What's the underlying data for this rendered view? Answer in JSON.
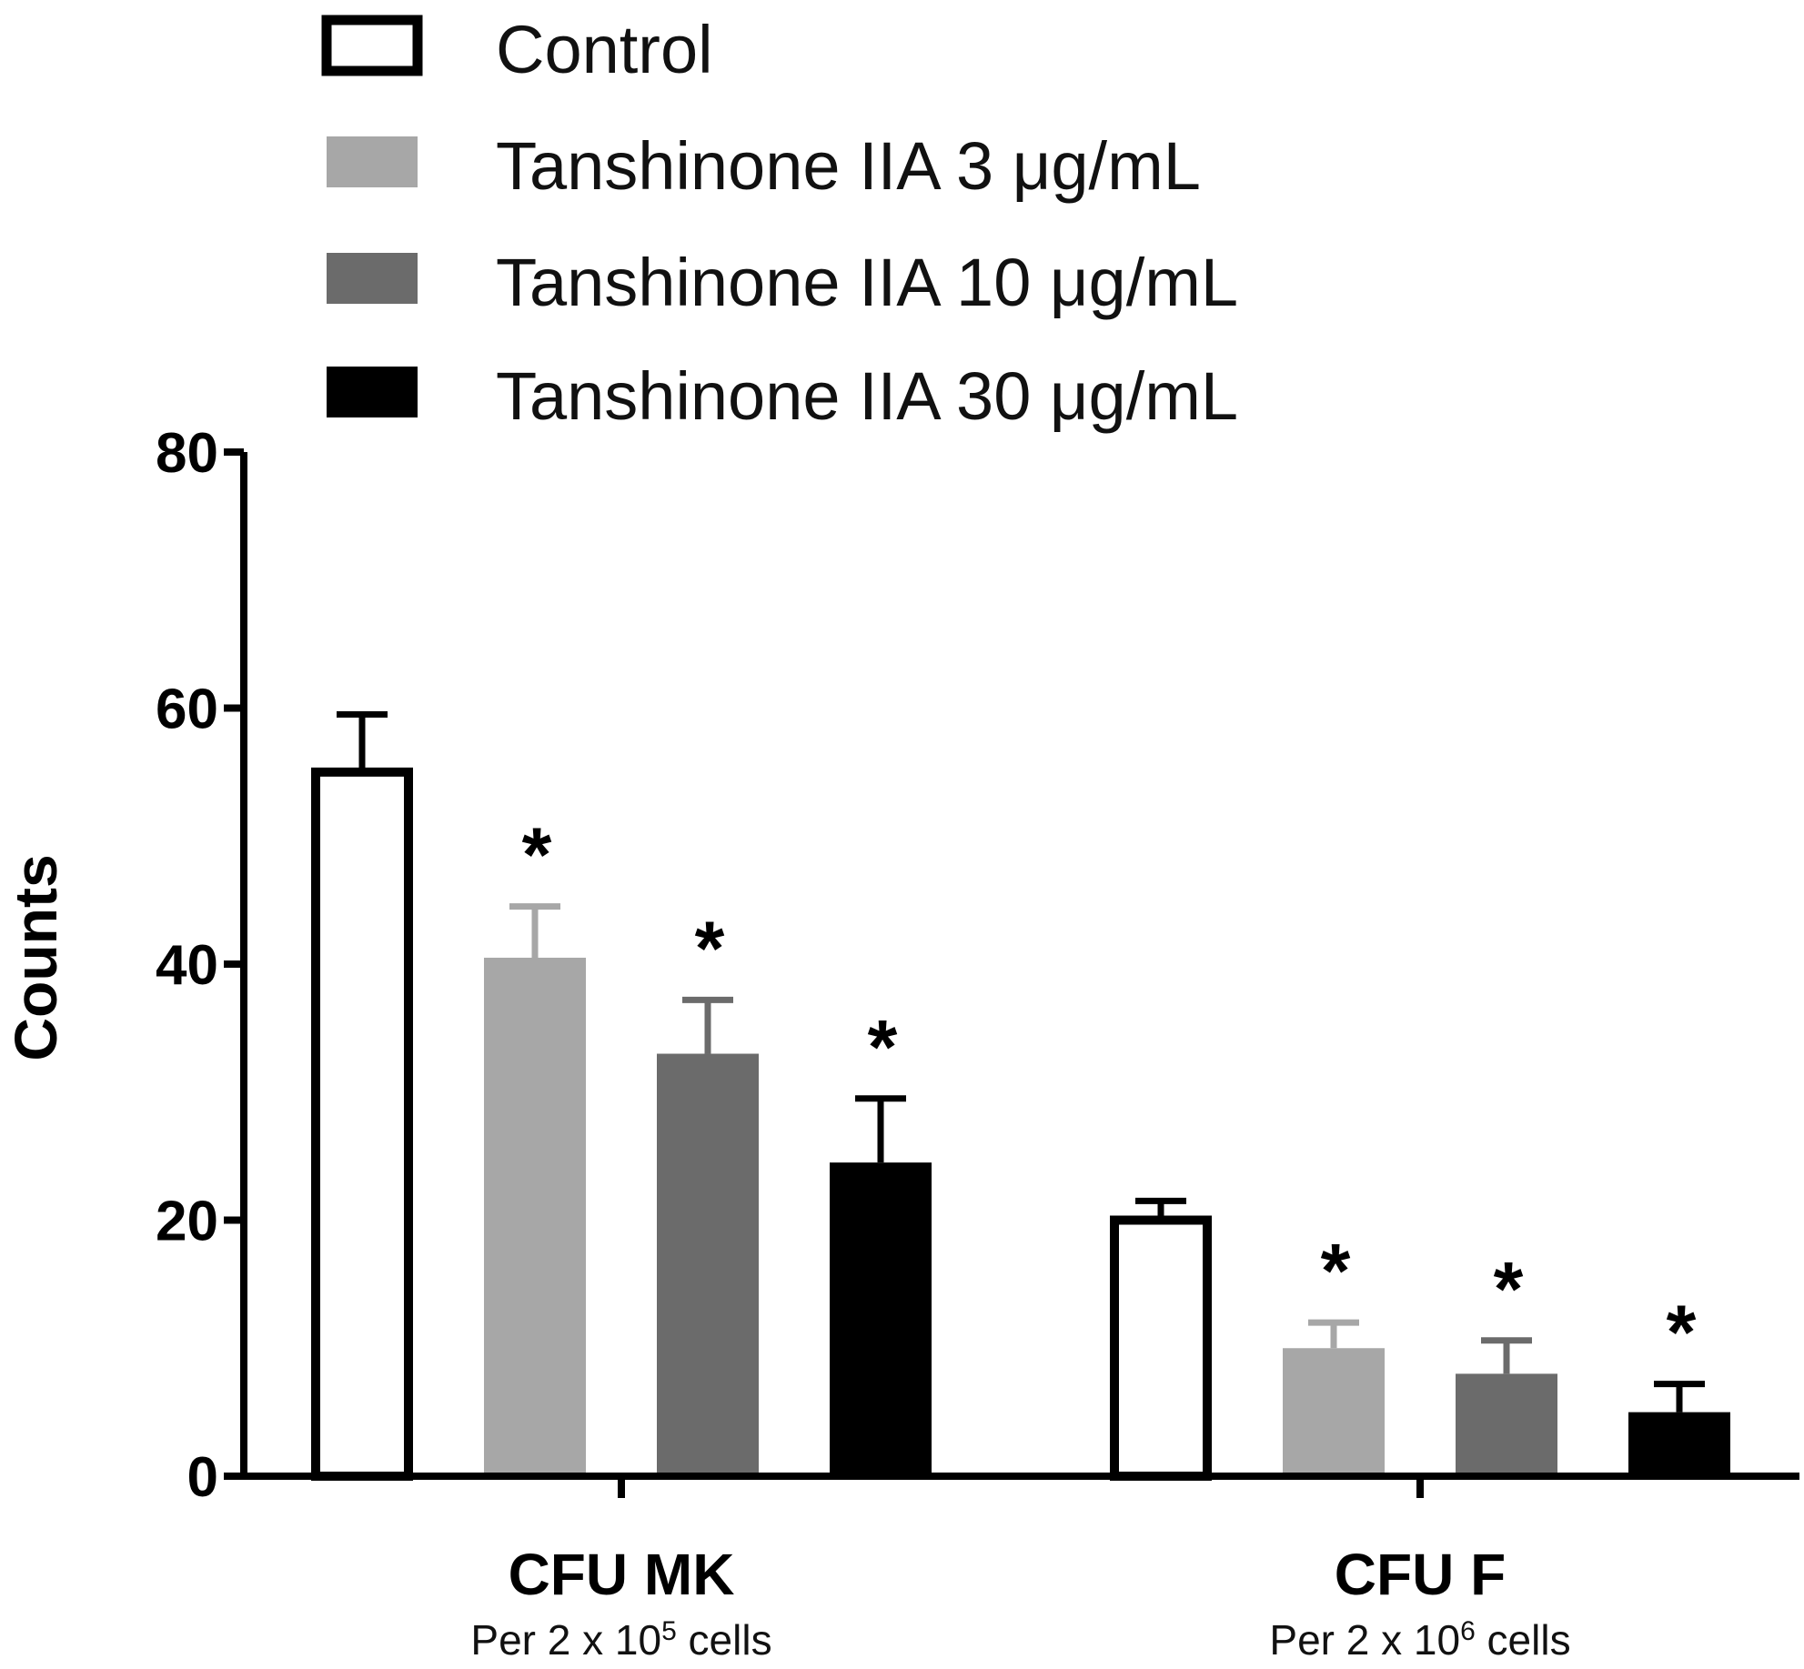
{
  "chart_data": {
    "type": "bar",
    "title": "",
    "xlabel": "",
    "ylabel": "Counts",
    "ylim": [
      0,
      80
    ],
    "yticks": [
      0,
      20,
      40,
      60,
      80
    ],
    "legend_position": "top",
    "categories": [
      {
        "label": "CFU MK",
        "sublabel": {
          "prefix": "Per 2 x 10",
          "exponent": "5",
          "suffix": " cells"
        }
      },
      {
        "label": "CFU F",
        "sublabel": {
          "prefix": "Per 2 x 10",
          "exponent": "6",
          "suffix": " cells"
        }
      }
    ],
    "series": [
      {
        "name": "Control",
        "color": "#ffffff",
        "stroke": "#000000",
        "values": [
          55,
          20
        ],
        "errors": [
          4.5,
          1.5
        ],
        "significant": [
          false,
          false
        ]
      },
      {
        "name": "Tanshinone IIA 3 μg/mL",
        "color": "#a7a7a7",
        "values": [
          40.5,
          10
        ],
        "errors": [
          4,
          2
        ],
        "significant": [
          true,
          true
        ]
      },
      {
        "name": "Tanshinone IIA 10 μg/mL",
        "color": "#6b6b6b",
        "values": [
          33,
          8
        ],
        "errors": [
          4.2,
          2.6
        ],
        "significant": [
          true,
          true
        ]
      },
      {
        "name": "Tanshinone IIA 30 μg/mL",
        "color": "#000000",
        "values": [
          24.5,
          5
        ],
        "errors": [
          5,
          2.2
        ],
        "significant": [
          true,
          true
        ]
      }
    ],
    "significance_marker": "*"
  }
}
